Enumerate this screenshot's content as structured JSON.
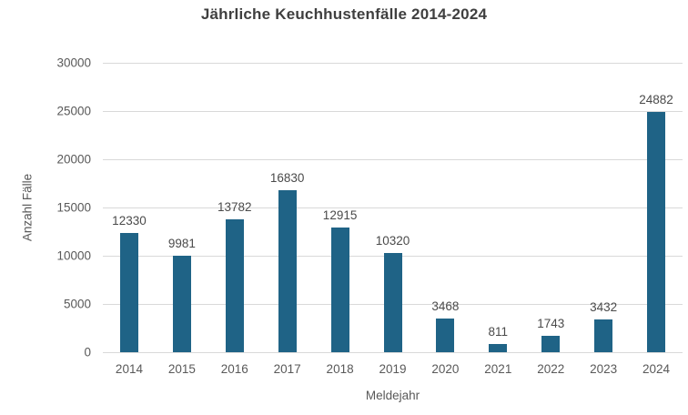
{
  "chart_data": {
    "type": "bar",
    "title": "Jährliche Keuchhustenfälle 2014-2024",
    "xlabel": "Meldejahr",
    "ylabel": "Anzahl Fälle",
    "categories": [
      "2014",
      "2015",
      "2016",
      "2017",
      "2018",
      "2019",
      "2020",
      "2021",
      "2022",
      "2023",
      "2024"
    ],
    "values": [
      12330,
      9981,
      13782,
      16830,
      12915,
      10320,
      3468,
      811,
      1743,
      3432,
      24882
    ],
    "value_labels": [
      "12330",
      "9981",
      "13782",
      "16830",
      "12915",
      "10320",
      "3468",
      "811",
      "1743",
      "3432",
      "24882"
    ],
    "ylim": [
      0,
      30000
    ],
    "yticks": [
      0,
      5000,
      10000,
      15000,
      20000,
      25000,
      30000
    ],
    "ytick_labels": [
      "0",
      "5000",
      "10000",
      "15000",
      "20000",
      "25000",
      "30000"
    ],
    "grid": "horizontal",
    "legend_position": "none",
    "colors": {
      "bar": "#1F6386",
      "gridline": "#D9D9D9",
      "axis_text": "#595959",
      "value_text": "#4A4A4A",
      "title_text": "#3F3F3F",
      "background": "#FFFFFF"
    }
  }
}
